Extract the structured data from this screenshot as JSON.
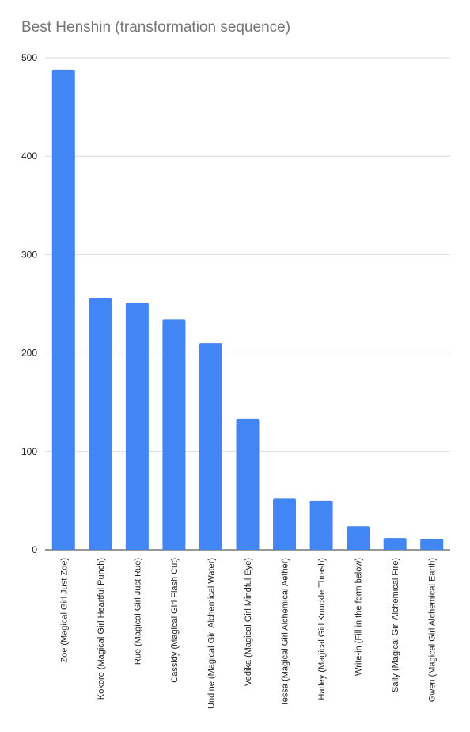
{
  "chart_data": {
    "type": "bar",
    "title": "Best Henshin (transformation sequence)",
    "xlabel": "",
    "ylabel": "",
    "categories": [
      "Zoe (Magical Girl Just Zoe)",
      "Kokoro (Magical Girl Heartful Punch)",
      "Rue (Magical Girl Just Rue)",
      "Cassidy (Magical Girl Flash Cut)",
      "Undine (Magical Girl Alchemical Water)",
      "Vedika (Magical Girl Mindful Eye)",
      "Tessa (Magical Girl Alchemical Aether)",
      "Harley (Magical Girl Knuckle Thrash)",
      "Write-in (Fill in the form below)",
      "Sally (Magical Girl Alchemical Fire)",
      "Gwen (Magical Girl Alchemical Earth)"
    ],
    "values": [
      488,
      256,
      251,
      234,
      210,
      133,
      52,
      50,
      24,
      12,
      11
    ],
    "ylim": [
      0,
      500
    ],
    "yticks": [
      0,
      100,
      200,
      300,
      400,
      500
    ],
    "grid": true,
    "legend": "none",
    "bar_color": "#4285f4",
    "grid_color": "#d9d9d9"
  }
}
